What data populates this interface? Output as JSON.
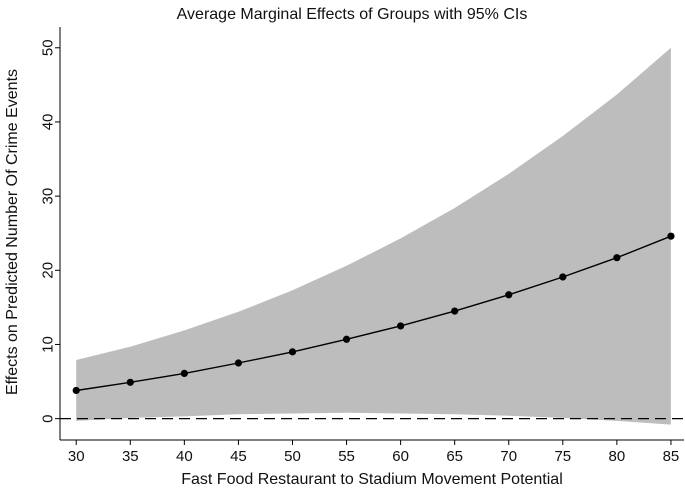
{
  "chart_data": {
    "type": "line",
    "title": "Average Marginal Effects of Groups with 95% CIs",
    "xlabel": "Fast Food Restaurant to Stadium Movement Potential",
    "ylabel": "Effects on Predicted Number Of Crime Events",
    "xlim": [
      28.5,
      86.3
    ],
    "ylim": [
      -1.8,
      52.8
    ],
    "x_ticks": [
      30,
      35,
      40,
      45,
      50,
      55,
      60,
      65,
      70,
      75,
      80,
      85
    ],
    "y_ticks": [
      0,
      10,
      20,
      30,
      40,
      50
    ],
    "series": [
      {
        "name": "Average marginal effect",
        "x": [
          30,
          35,
          40,
          45,
          50,
          55,
          60,
          65,
          70,
          75,
          80,
          85
        ],
        "values": [
          3.8,
          4.9,
          6.1,
          7.5,
          9.0,
          10.7,
          12.5,
          14.5,
          16.7,
          19.1,
          21.7,
          24.6
        ]
      }
    ],
    "ci": {
      "name": "95% CI",
      "x": [
        30,
        35,
        40,
        45,
        50,
        55,
        60,
        65,
        70,
        75,
        80,
        85
      ],
      "upper": [
        7.9,
        9.7,
        11.9,
        14.4,
        17.3,
        20.6,
        24.3,
        28.4,
        33.0,
        38.1,
        43.7,
        50.0
      ],
      "lower": [
        -0.3,
        0.1,
        0.3,
        0.6,
        0.7,
        0.8,
        0.7,
        0.6,
        0.4,
        0.1,
        -0.3,
        -0.8
      ]
    },
    "reference_line": {
      "y": 0,
      "style": "dashed"
    },
    "colors": {
      "ci_fill": "#bdbdbd",
      "line": "#000000",
      "reference": "#000000"
    }
  }
}
